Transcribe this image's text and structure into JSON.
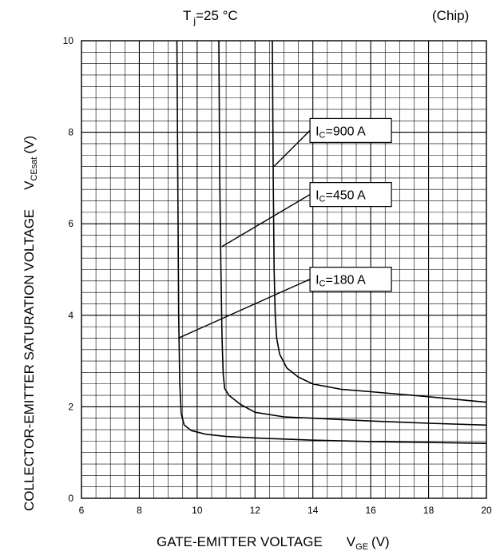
{
  "chart_data": {
    "type": "line",
    "title_lead": "T",
    "title_sub": "j",
    "title_tail": "=25 °C",
    "annotation": "(Chip)",
    "xlabel": "GATE-EMITTER VOLTAGE",
    "xlabel_symbol": "V",
    "xlabel_symbol_sub": "GE",
    "xlabel_unit": "(V)",
    "ylabel": "COLLECTOR-EMITTER SATURATION VOLTAGE",
    "ylabel_symbol": "V",
    "ylabel_symbol_sub": "CEsat",
    "ylabel_unit": "(V)",
    "xlim": [
      6,
      20
    ],
    "ylim": [
      0,
      10
    ],
    "x_ticks": [
      6,
      8,
      10,
      12,
      14,
      16,
      18,
      20
    ],
    "y_ticks": [
      0,
      2,
      4,
      6,
      8,
      10
    ],
    "x_minor_step": 0.5,
    "y_minor_step": 0.25,
    "grid": true,
    "colors": {
      "line": "#000000",
      "grid": "#000000",
      "background": "#ffffff"
    },
    "series": [
      {
        "label_main": "I",
        "label_sub": "C",
        "label_tail": "=180 A",
        "label_anchor": {
          "x": 9.35,
          "y": 3.5
        },
        "label_box": {
          "x": 13.9,
          "y": 5.05
        },
        "points": [
          [
            9.3,
            10
          ],
          [
            9.33,
            7
          ],
          [
            9.36,
            4
          ],
          [
            9.4,
            2.5
          ],
          [
            9.45,
            1.85
          ],
          [
            9.55,
            1.6
          ],
          [
            9.8,
            1.48
          ],
          [
            10.3,
            1.4
          ],
          [
            11,
            1.35
          ],
          [
            12,
            1.32
          ],
          [
            14,
            1.27
          ],
          [
            16,
            1.24
          ],
          [
            18,
            1.22
          ],
          [
            20,
            1.2
          ]
        ]
      },
      {
        "label_main": "I",
        "label_sub": "C",
        "label_tail": "=450 A",
        "label_anchor": {
          "x": 10.85,
          "y": 5.5
        },
        "label_box": {
          "x": 13.9,
          "y": 6.9
        },
        "points": [
          [
            10.75,
            10
          ],
          [
            10.78,
            7
          ],
          [
            10.82,
            5
          ],
          [
            10.86,
            3.5
          ],
          [
            10.9,
            2.7
          ],
          [
            10.95,
            2.4
          ],
          [
            11.1,
            2.25
          ],
          [
            11.5,
            2.05
          ],
          [
            12,
            1.88
          ],
          [
            13,
            1.78
          ],
          [
            14,
            1.75
          ],
          [
            16,
            1.69
          ],
          [
            18,
            1.64
          ],
          [
            20,
            1.6
          ]
        ]
      },
      {
        "label_main": "I",
        "label_sub": "C",
        "label_tail": "=900 A",
        "label_anchor": {
          "x": 12.65,
          "y": 7.25
        },
        "label_box": {
          "x": 13.9,
          "y": 8.3
        },
        "points": [
          [
            12.6,
            10
          ],
          [
            12.63,
            7
          ],
          [
            12.66,
            5
          ],
          [
            12.7,
            4
          ],
          [
            12.75,
            3.5
          ],
          [
            12.85,
            3.15
          ],
          [
            13.1,
            2.85
          ],
          [
            13.5,
            2.65
          ],
          [
            14,
            2.5
          ],
          [
            15,
            2.38
          ],
          [
            16,
            2.33
          ],
          [
            18,
            2.22
          ],
          [
            20,
            2.1
          ]
        ]
      }
    ]
  }
}
